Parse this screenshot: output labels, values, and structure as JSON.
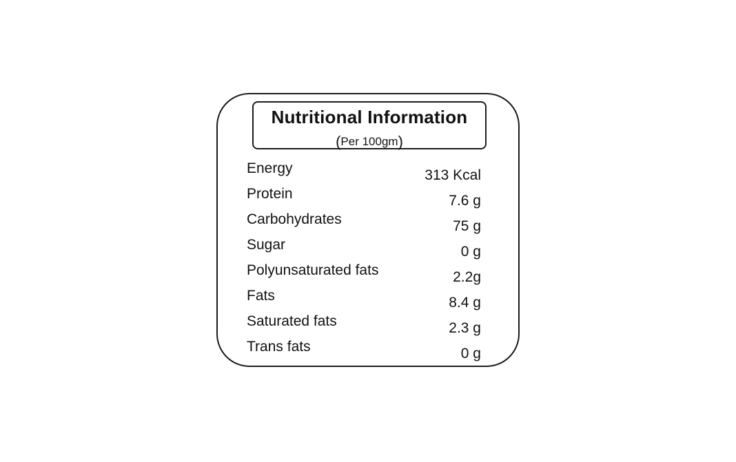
{
  "label": {
    "title": "Nutritional Information",
    "subtitle_open": "(",
    "subtitle": "Per 100gm",
    "subtitle_close": ")",
    "rows": [
      {
        "name": "Energy",
        "value": "313 Kcal"
      },
      {
        "name": "Protein",
        "value": "7.6 g"
      },
      {
        "name": "Carbohydrates",
        "value": "75 g"
      },
      {
        "name": "Sugar",
        "value": "0 g"
      },
      {
        "name": "Polyunsaturated fats",
        "value": "2.2g"
      },
      {
        "name": "Fats",
        "value": "8.4 g"
      },
      {
        "name": "Saturated fats",
        "value": "2.3 g"
      },
      {
        "name": "Trans fats",
        "value": "0 g"
      }
    ]
  }
}
